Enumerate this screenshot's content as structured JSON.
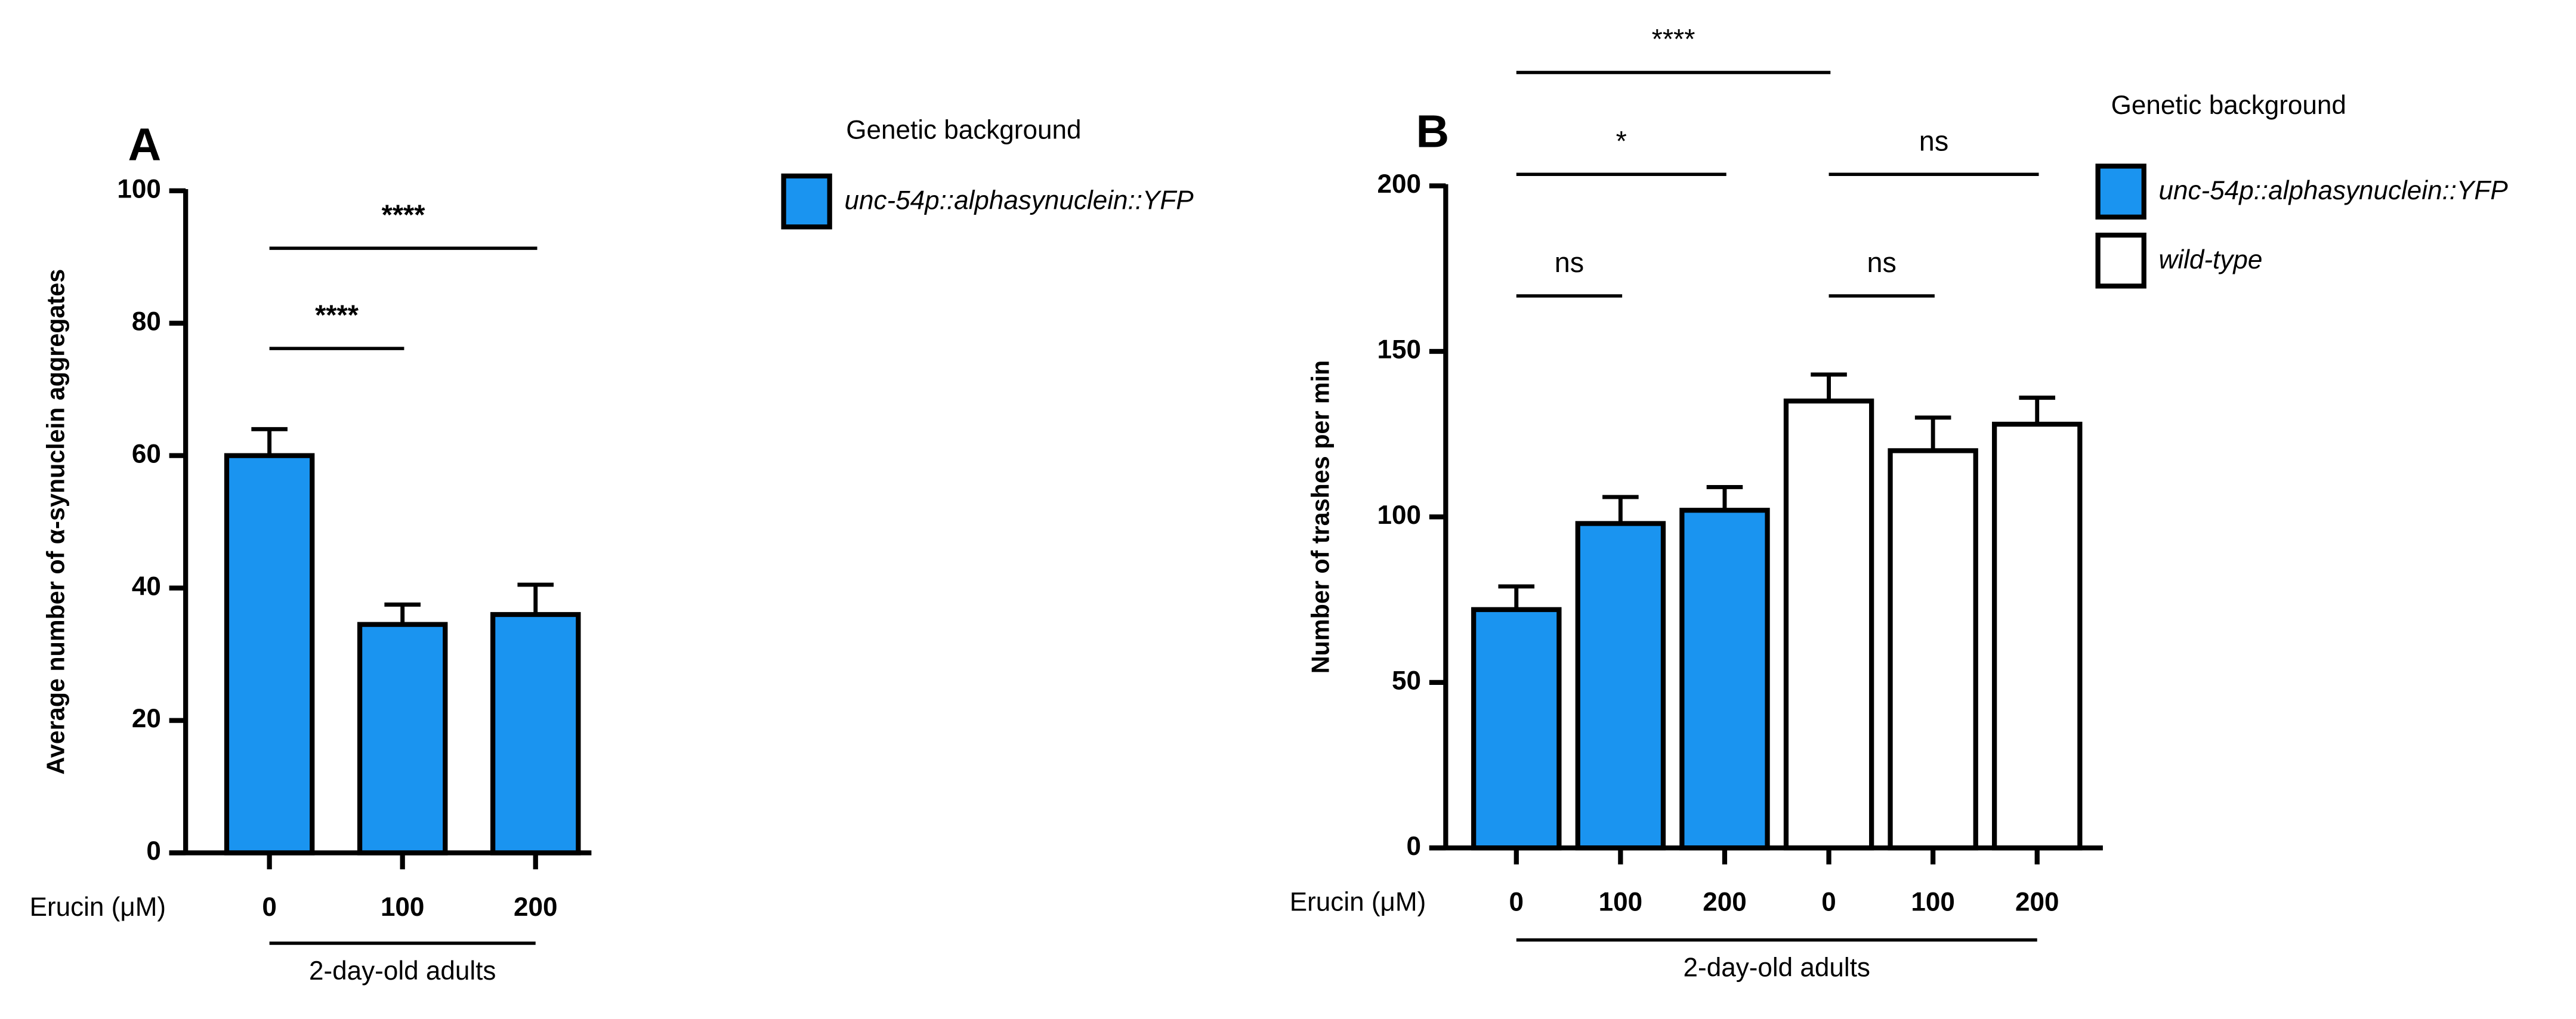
{
  "chart_data": [
    {
      "type": "bar",
      "panel": "A",
      "y_label": "Average number of α-synuclein aggregates",
      "x_label": "Erucin (μM)",
      "group_label": "2-day-old adults",
      "legend_title": "Genetic background",
      "categories": [
        "0",
        "100",
        "200"
      ],
      "series": [
        {
          "name": "unc-54p::alphasynuclein::YFP",
          "color": "#1a94f0",
          "values": [
            60,
            34.5,
            36
          ],
          "errors": [
            4,
            3,
            4.5
          ]
        }
      ],
      "ylim": [
        0,
        100
      ],
      "yticks": [
        0,
        20,
        40,
        60,
        80,
        100
      ],
      "annotations": [
        {
          "text": "****",
          "from": 0,
          "to": 2
        },
        {
          "text": "****",
          "from": 0,
          "to": 1
        }
      ]
    },
    {
      "type": "bar",
      "panel": "B",
      "y_label": "Number of trashes per min",
      "x_label": "Erucin (μM)",
      "group_label": "2-day-old adults",
      "legend_title": "Genetic background",
      "categories": [
        "0",
        "100",
        "200",
        "0",
        "100",
        "200"
      ],
      "series": [
        {
          "name": "unc-54p::alphasynuclein::YFP",
          "color": "#1a94f0",
          "values": [
            72,
            98,
            102,
            null,
            null,
            null
          ],
          "errors": [
            7,
            8,
            7,
            null,
            null,
            null
          ]
        },
        {
          "name": "wild-type",
          "color": "#ffffff",
          "values": [
            null,
            null,
            null,
            135,
            120,
            128
          ],
          "errors": [
            null,
            null,
            null,
            8,
            10,
            8
          ]
        }
      ],
      "ylim": [
        0,
        200
      ],
      "yticks": [
        0,
        50,
        100,
        150,
        200
      ],
      "annotations": [
        {
          "text": "****",
          "from": 0,
          "to": 3
        },
        {
          "text": "*",
          "from": 0,
          "to": 2
        },
        {
          "text": "ns",
          "from": 3,
          "to": 5
        },
        {
          "text": "ns",
          "from": 0,
          "to": 1
        },
        {
          "text": "ns",
          "from": 3,
          "to": 4
        }
      ]
    }
  ]
}
